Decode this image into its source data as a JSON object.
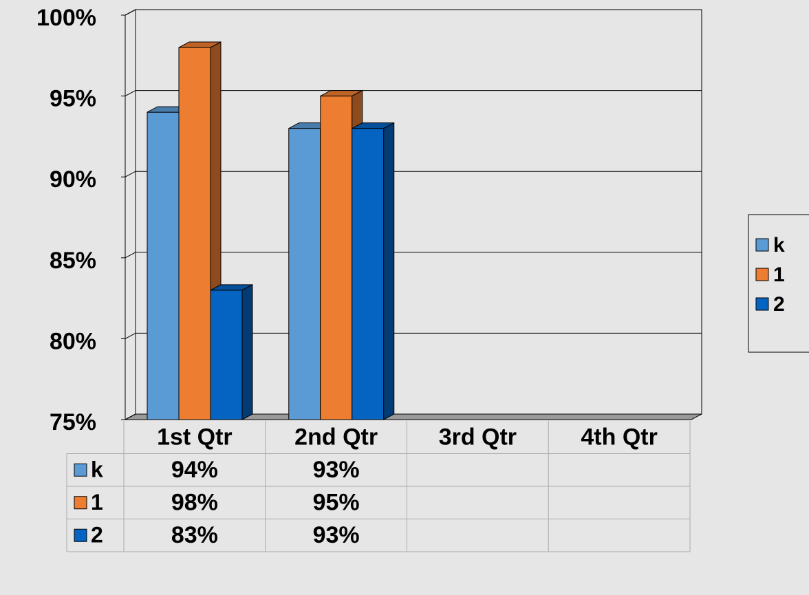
{
  "chart_data": {
    "type": "bar3d",
    "categories": [
      "1st Qtr",
      "2nd Qtr",
      "3rd Qtr",
      "4th Qtr"
    ],
    "series": [
      {
        "name": "k",
        "color": "#5b9bd5",
        "values": [
          94,
          93,
          null,
          null
        ],
        "value_labels": [
          "94%",
          "93%",
          null,
          null
        ]
      },
      {
        "name": "1",
        "color": "#ed7d31",
        "values": [
          98,
          95,
          null,
          null
        ],
        "value_labels": [
          "98%",
          "95%",
          null,
          null
        ]
      },
      {
        "name": "2",
        "color": "#0563c1",
        "values": [
          83,
          93,
          null,
          null
        ],
        "value_labels": [
          "83%",
          "93%",
          null,
          null
        ]
      }
    ],
    "ylim": [
      75,
      100
    ],
    "yticks": [
      {
        "value": 75,
        "label": "75%"
      },
      {
        "value": 80,
        "label": "80%"
      },
      {
        "value": 85,
        "label": "85%"
      },
      {
        "value": 90,
        "label": "90%"
      },
      {
        "value": 95,
        "label": "95%"
      },
      {
        "value": 100,
        "label": "100%"
      }
    ],
    "grid": true,
    "legend": "right",
    "data_table": true
  }
}
